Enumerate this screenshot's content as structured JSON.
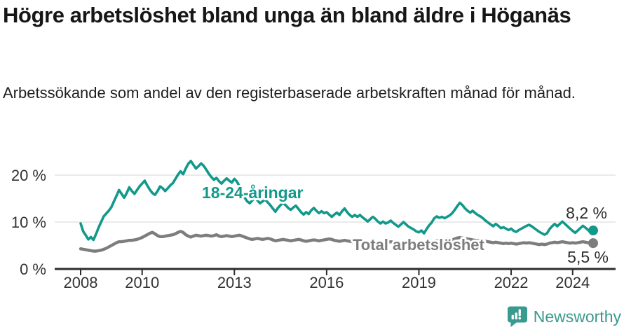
{
  "header": {
    "title": "Högre arbetslöshet bland unga än bland äldre i Höganäs",
    "subtitle": "Arbetssökande som andel av den registerbaserade arbetskraften månad för månad."
  },
  "branding": {
    "logo_text": "Newsworthy",
    "logo_icon": "chart-speech-bubble-icon",
    "brand_color": "#399a8e"
  },
  "chart_data": {
    "type": "line",
    "title": "Högre arbetslöshet bland unga än bland äldre i Höganäs",
    "subtitle": "Arbetssökande som andel av den registerbaserade arbetskraften månad för månad.",
    "x_unit": "month",
    "x_start_year": 2008,
    "x_start_month": 1,
    "x_end_year": 2024,
    "x_end_month": 9,
    "ylim": [
      0,
      24
    ],
    "grid": "horizontal",
    "legend": "inline-labels",
    "yticks": [
      {
        "value": 0,
        "label": "0 %"
      },
      {
        "value": 10,
        "label": "10 %"
      },
      {
        "value": 20,
        "label": "20 %"
      }
    ],
    "xticks": [
      {
        "value": 2008,
        "label": "2008"
      },
      {
        "value": 2010,
        "label": "2010"
      },
      {
        "value": 2013,
        "label": "2013"
      },
      {
        "value": 2016,
        "label": "2016"
      },
      {
        "value": 2019,
        "label": "2019"
      },
      {
        "value": 2022,
        "label": "2022"
      },
      {
        "value": 2024,
        "label": "2024"
      }
    ],
    "series": [
      {
        "name": "18-24-åringar",
        "color": "#12998a",
        "end_label": "8,2 %",
        "end_value": 8.2,
        "values": [
          9.7,
          8.0,
          7.2,
          6.3,
          6.8,
          6.2,
          7.4,
          8.8,
          10.0,
          11.2,
          11.8,
          12.4,
          13.2,
          14.4,
          15.6,
          16.8,
          16.0,
          15.2,
          16.2,
          17.4,
          16.6,
          16.0,
          16.8,
          17.6,
          18.2,
          18.8,
          17.8,
          16.9,
          16.2,
          15.8,
          16.6,
          17.6,
          17.2,
          16.6,
          17.2,
          17.8,
          18.3,
          19.2,
          20.1,
          20.8,
          20.2,
          21.4,
          22.4,
          23.0,
          22.2,
          21.4,
          21.9,
          22.5,
          22.0,
          21.2,
          20.3,
          19.6,
          19.0,
          19.4,
          18.7,
          18.2,
          18.8,
          19.3,
          18.8,
          18.4,
          19.2,
          18.6,
          17.6,
          16.4,
          15.2,
          14.4,
          14.0,
          14.6,
          15.2,
          14.6,
          14.0,
          14.4,
          14.8,
          14.2,
          13.6,
          12.9,
          12.2,
          13.0,
          13.6,
          14.1,
          13.6,
          13.0,
          12.6,
          13.1,
          13.5,
          12.8,
          12.1,
          11.6,
          12.1,
          11.7,
          12.5,
          13.0,
          12.4,
          11.9,
          12.3,
          11.9,
          12.1,
          11.6,
          11.1,
          11.6,
          12.0,
          11.5,
          12.3,
          12.9,
          12.1,
          11.5,
          11.1,
          11.5,
          11.1,
          11.5,
          11.0,
          10.6,
          10.1,
          10.6,
          11.1,
          10.7,
          10.1,
          9.7,
          10.1,
          9.7,
          9.9,
          10.3,
          9.8,
          9.4,
          9.0,
          9.5,
          10.0,
          9.5,
          9.0,
          8.7,
          8.4,
          8.0,
          7.8,
          8.2,
          7.6,
          8.5,
          9.3,
          9.9,
          10.8,
          11.2,
          10.9,
          11.1,
          10.8,
          11.1,
          11.4,
          11.9,
          12.6,
          13.4,
          14.1,
          13.6,
          12.9,
          12.4,
          12.0,
          12.4,
          11.9,
          11.5,
          11.2,
          10.8,
          10.3,
          9.9,
          9.5,
          9.1,
          9.6,
          9.2,
          8.7,
          8.9,
          8.6,
          8.3,
          8.6,
          8.1,
          7.9,
          8.3,
          8.6,
          8.9,
          9.2,
          9.4,
          9.1,
          8.7,
          8.3,
          7.9,
          7.6,
          7.3,
          7.6,
          8.5,
          9.1,
          9.6,
          9.1,
          9.6,
          10.1,
          9.6,
          9.1,
          8.6,
          8.1,
          7.7,
          8.2,
          8.7,
          9.2,
          8.8,
          8.3,
          7.8,
          8.2
        ]
      },
      {
        "name": "Total arbetslöshet",
        "color": "#7d7d7d",
        "end_label": "5,5 %",
        "end_value": 5.5,
        "values": [
          4.3,
          4.2,
          4.1,
          4.0,
          3.9,
          3.8,
          3.8,
          3.9,
          4.0,
          4.2,
          4.4,
          4.7,
          5.0,
          5.3,
          5.6,
          5.8,
          5.8,
          5.9,
          6.0,
          6.1,
          6.1,
          6.2,
          6.3,
          6.5,
          6.7,
          7.0,
          7.3,
          7.6,
          7.8,
          7.5,
          7.1,
          6.9,
          6.9,
          7.0,
          7.1,
          7.2,
          7.3,
          7.5,
          7.8,
          8.0,
          7.8,
          7.3,
          7.0,
          6.8,
          7.0,
          7.2,
          7.1,
          7.0,
          7.1,
          7.2,
          7.1,
          7.0,
          7.1,
          7.3,
          7.0,
          6.9,
          7.0,
          7.1,
          7.0,
          6.9,
          7.0,
          7.1,
          7.2,
          7.0,
          6.8,
          6.6,
          6.4,
          6.3,
          6.4,
          6.5,
          6.4,
          6.3,
          6.4,
          6.5,
          6.4,
          6.2,
          6.0,
          6.1,
          6.2,
          6.3,
          6.2,
          6.1,
          6.0,
          6.1,
          6.2,
          6.3,
          6.2,
          6.0,
          5.9,
          6.0,
          6.1,
          6.2,
          6.1,
          6.0,
          6.1,
          6.2,
          6.3,
          6.4,
          6.3,
          6.1,
          6.0,
          5.9,
          6.0,
          6.1,
          6.0,
          5.9,
          5.8,
          5.9,
          6.0,
          6.1,
          6.0,
          5.8,
          5.7,
          5.8,
          5.9,
          5.8,
          5.7,
          5.6,
          5.7,
          5.8,
          5.7,
          5.8,
          5.7,
          5.6,
          5.5,
          5.6,
          5.7,
          5.6,
          5.5,
          5.4,
          5.5,
          5.6,
          5.5,
          5.6,
          5.5,
          5.6,
          5.7,
          5.8,
          5.9,
          6.0,
          5.9,
          5.8,
          5.9,
          6.0,
          6.1,
          6.2,
          6.4,
          6.6,
          6.7,
          6.6,
          6.5,
          6.4,
          6.3,
          6.2,
          6.1,
          6.0,
          6.1,
          6.0,
          5.9,
          5.8,
          5.7,
          5.6,
          5.7,
          5.6,
          5.5,
          5.4,
          5.5,
          5.4,
          5.5,
          5.4,
          5.3,
          5.4,
          5.5,
          5.6,
          5.5,
          5.6,
          5.5,
          5.4,
          5.3,
          5.2,
          5.3,
          5.2,
          5.3,
          5.5,
          5.6,
          5.7,
          5.6,
          5.7,
          5.8,
          5.7,
          5.6,
          5.5,
          5.6,
          5.5,
          5.6,
          5.7,
          5.8,
          5.7,
          5.6,
          5.5,
          5.5
        ]
      }
    ],
    "colors": {
      "grid": "#e4e4e4",
      "axis": "#2d2d2d",
      "tick_text": "#333333"
    }
  }
}
